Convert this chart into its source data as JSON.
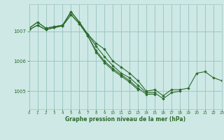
{
  "title": "Graphe pression niveau de la mer (hPa)",
  "background_color": "#cde8e5",
  "grid_color": "#9ec8c4",
  "line_color": "#2d6b2d",
  "marker_color": "#2d6b2d",
  "ylim": [
    1004.4,
    1007.9
  ],
  "yticks": [
    1005,
    1006,
    1007
  ],
  "xlim": [
    0,
    23
  ],
  "xticks": [
    0,
    1,
    2,
    3,
    4,
    5,
    6,
    7,
    8,
    9,
    10,
    11,
    12,
    13,
    14,
    15,
    16,
    17,
    18,
    19,
    20,
    21,
    22,
    23
  ],
  "series": [
    [
      1007.1,
      1007.3,
      1007.1,
      1007.15,
      1007.2,
      1007.65,
      1007.3,
      1006.9,
      1006.6,
      1006.4,
      1006.0,
      1005.8,
      1005.6,
      1005.35,
      1005.0,
      1005.05,
      1004.85,
      1005.05,
      1005.05,
      1005.1,
      1005.6,
      1005.65,
      1005.45,
      1005.35
    ],
    [
      1007.1,
      1007.3,
      1007.1,
      1007.15,
      1007.2,
      1007.65,
      1007.3,
      1006.9,
      1006.5,
      1006.15,
      1005.85,
      1005.6,
      1005.45,
      1005.2,
      1004.95,
      1004.95,
      1004.75,
      1004.95,
      1005.0,
      null,
      null,
      null,
      null,
      null
    ],
    [
      1007.05,
      1007.2,
      1007.05,
      1007.12,
      1007.18,
      1007.55,
      1007.25,
      1006.85,
      1006.35,
      1006.0,
      1005.75,
      1005.55,
      1005.35,
      1005.1,
      1004.9,
      1004.9,
      null,
      null,
      null,
      null,
      null,
      null,
      null,
      null
    ],
    [
      1007.05,
      1007.2,
      1007.05,
      1007.12,
      1007.18,
      1007.55,
      1007.25,
      1006.85,
      1006.3,
      1005.95,
      1005.7,
      1005.5,
      1005.3,
      1005.05,
      null,
      null,
      null,
      null,
      null,
      null,
      null,
      null,
      null,
      null
    ]
  ]
}
